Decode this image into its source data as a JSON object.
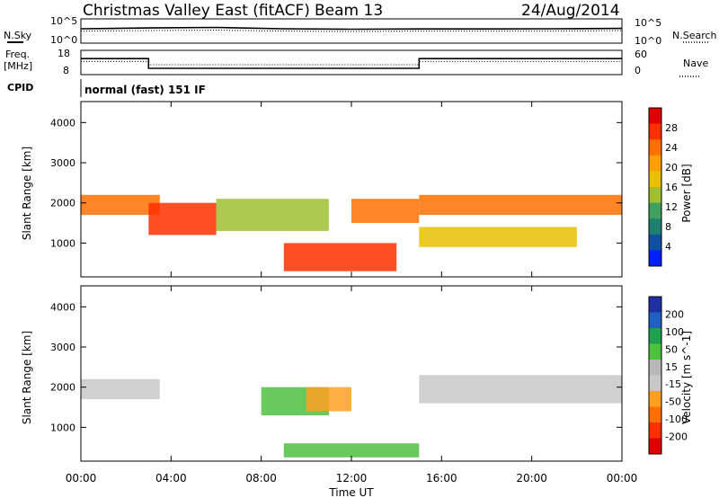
{
  "header": {
    "station": "Christmas Valley East (fitACF)",
    "beam": "Beam 13",
    "date": "24/Aug/2014"
  },
  "noise_panel": {
    "left_label": "N.Sky",
    "left_ticks": [
      "10^5",
      "10^0"
    ],
    "right_label": "N.Search",
    "right_ticks": [
      "10^5",
      "10^0"
    ]
  },
  "freq_panel": {
    "left_label_1": "Freq.",
    "left_label_2": "[MHz]",
    "left_ticks": [
      "18",
      "8"
    ],
    "right_label": "Nave",
    "right_ticks": [
      "60",
      "0"
    ],
    "freq_series": {
      "x": [
        0,
        3,
        3,
        15,
        15,
        24
      ],
      "y": [
        15,
        15,
        10.5,
        10.5,
        15,
        15
      ]
    },
    "nave_series": {
      "x": [
        0,
        3,
        3,
        15,
        15,
        24
      ],
      "y": [
        34,
        34,
        25,
        25,
        34,
        34
      ]
    }
  },
  "cpid": {
    "label": "CPID",
    "program": "normal (fast) 151 IF"
  },
  "power_panel": {
    "ylabel": "Slant Range [km]",
    "yticks": [
      "4000",
      "3000",
      "2000",
      "1000"
    ],
    "colorbar_label": "Power [dB]",
    "colorbar_ticks": [
      "28",
      "24",
      "20",
      "16",
      "12",
      "8",
      "4"
    ],
    "colorbar_colors": [
      "#e00000",
      "#ff3000",
      "#ff7000",
      "#ffa000",
      "#e8c000",
      "#a0c030",
      "#40a060",
      "#208070",
      "#1050a0",
      "#0020ff"
    ]
  },
  "velocity_panel": {
    "ylabel": "Slant Range [km]",
    "yticks": [
      "4000",
      "3000",
      "2000",
      "1000"
    ],
    "colorbar_label": "Velocity [m s^-1]",
    "colorbar_ticks": [
      "200",
      "100",
      "50",
      "15",
      "-15",
      "-50",
      "-100",
      "-200"
    ],
    "colorbar_colors": [
      "#2030a0",
      "#2060c0",
      "#20a050",
      "#50c040",
      "#b8b8b8",
      "#c8c8c8",
      "#ffa020",
      "#ff7000",
      "#ff3000",
      "#e00000"
    ]
  },
  "x_axis": {
    "ticks": [
      "00:00",
      "04:00",
      "08:00",
      "12:00",
      "16:00",
      "20:00",
      "00:00"
    ],
    "label": "Time UT"
  },
  "chart_data": [
    {
      "type": "line",
      "panel": "noise",
      "series": [
        {
          "name": "N.Sky",
          "x": [
            0,
            3,
            6,
            9,
            12,
            15,
            18,
            21,
            24
          ],
          "y": [
            1000,
            1500,
            2000,
            1000,
            800,
            900,
            900,
            1000,
            1200
          ]
        },
        {
          "name": "N.Search",
          "x": [
            0,
            3,
            6,
            9,
            12,
            15,
            18,
            21,
            24
          ],
          "y": [
            300,
            400,
            500,
            300,
            250,
            300,
            300,
            300,
            400
          ]
        }
      ],
      "yscale": "log",
      "ylim": [
        1,
        100000
      ],
      "xlim": [
        0,
        24
      ]
    },
    {
      "type": "line",
      "panel": "frequency",
      "series": [
        {
          "name": "Freq.",
          "x": [
            0,
            3,
            3,
            15,
            15,
            24
          ],
          "y": [
            15,
            15,
            10.5,
            10.5,
            15,
            15
          ]
        },
        {
          "name": "Nave",
          "x": [
            0,
            3,
            3,
            15,
            15,
            24
          ],
          "y": [
            34,
            34,
            25,
            25,
            34,
            34
          ]
        }
      ],
      "ylim": [
        8,
        18
      ],
      "xlim": [
        0,
        24
      ]
    },
    {
      "type": "heatmap",
      "panel": "power",
      "xlim": [
        0,
        24
      ],
      "ylim": [
        180,
        4500
      ],
      "ylabel": "Slant Range [km]",
      "xlabel": "Time UT",
      "colorbar": {
        "label": "Power [dB]",
        "range": [
          0,
          30
        ]
      },
      "features": [
        {
          "t": [
            0,
            3.5
          ],
          "r": [
            1700,
            2200
          ],
          "db": 22
        },
        {
          "t": [
            3,
            6
          ],
          "r": [
            1200,
            2000
          ],
          "db": 26
        },
        {
          "t": [
            6,
            11
          ],
          "r": [
            1300,
            2100
          ],
          "db": 14
        },
        {
          "t": [
            9,
            14
          ],
          "r": [
            300,
            1000
          ],
          "db": 26
        },
        {
          "t": [
            12,
            15
          ],
          "r": [
            1500,
            2100
          ],
          "db": 22
        },
        {
          "t": [
            15,
            24
          ],
          "r": [
            1700,
            2200
          ],
          "db": 24
        },
        {
          "t": [
            15,
            22
          ],
          "r": [
            900,
            1400
          ],
          "db": 18
        }
      ]
    },
    {
      "type": "heatmap",
      "panel": "velocity",
      "xlim": [
        0,
        24
      ],
      "ylim": [
        180,
        4500
      ],
      "ylabel": "Slant Range [km]",
      "xlabel": "Time UT",
      "colorbar": {
        "label": "Velocity [m s^-1]",
        "range": [
          -250,
          250
        ]
      },
      "features": [
        {
          "t": [
            0,
            3.5
          ],
          "r": [
            1700,
            2200
          ],
          "v": -10
        },
        {
          "t": [
            8,
            11
          ],
          "r": [
            1300,
            2000
          ],
          "v": 60
        },
        {
          "t": [
            10,
            12
          ],
          "r": [
            1400,
            2000
          ],
          "v": -60
        },
        {
          "t": [
            15,
            24
          ],
          "r": [
            1600,
            2300
          ],
          "v": 0
        },
        {
          "t": [
            9,
            15
          ],
          "r": [
            250,
            600
          ],
          "v": 60
        }
      ]
    }
  ]
}
